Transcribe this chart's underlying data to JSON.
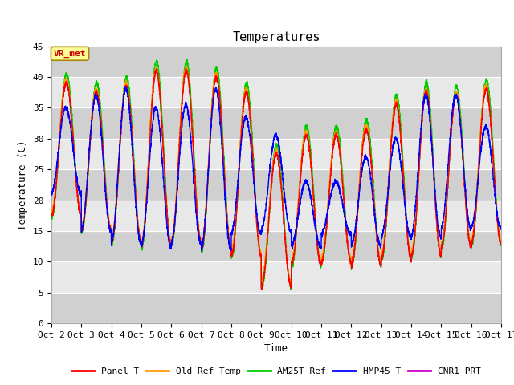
{
  "title": "Temperatures",
  "xlabel": "Time",
  "ylabel": "Temperature (C)",
  "ylim": [
    0,
    45
  ],
  "xlim": [
    0,
    15
  ],
  "xtick_labels": [
    "Oct 2",
    "Oct 3",
    "Oct 4",
    "Oct 5",
    "Oct 6",
    "Oct 7",
    "Oct 8",
    "Oct 9",
    "Oct 10",
    "Oct 11",
    "Oct 12",
    "Oct 13",
    "Oct 14",
    "Oct 15",
    "Oct 16",
    "Oct 17"
  ],
  "legend_entries": [
    "Panel T",
    "Old Ref Temp",
    "AM25T Ref",
    "HMP45 T",
    "CNR1 PRT"
  ],
  "legend_colors": [
    "#ff0000",
    "#ff9900",
    "#00cc00",
    "#0000ff",
    "#cc00cc"
  ],
  "annotation_text": "VR_met",
  "annotation_color": "#cc0000",
  "annotation_bg": "#ffff99",
  "fig_bg_color": "#ffffff",
  "plot_bg_color": "#e8e8e8",
  "band_light": "#e8e8e8",
  "band_dark": "#d0d0d0",
  "title_fontsize": 11,
  "label_fontsize": 9,
  "tick_fontsize": 8,
  "line_width": 1.0,
  "daily_mins": [
    17.5,
    15.0,
    13.0,
    12.5,
    13.0,
    12.0,
    11.0,
    6.0,
    9.5,
    10.0,
    9.5,
    10.5,
    11.0,
    12.5,
    13.0,
    16.0
  ],
  "daily_maxs": [
    39.0,
    37.5,
    38.5,
    41.0,
    41.0,
    40.0,
    37.5,
    27.5,
    30.5,
    30.5,
    31.5,
    35.5,
    37.5,
    37.0,
    38.0,
    38.0
  ],
  "hmp45_mins": [
    21.0,
    15.0,
    13.0,
    12.5,
    13.0,
    12.0,
    14.5,
    15.0,
    12.5,
    14.5,
    12.5,
    14.0,
    14.0,
    15.5,
    15.5,
    16.0
  ],
  "hmp45_maxs": [
    35.0,
    37.0,
    38.0,
    35.0,
    35.5,
    38.0,
    33.5,
    30.5,
    23.0,
    23.0,
    27.0,
    30.0,
    37.0,
    37.0,
    32.0,
    32.0
  ]
}
